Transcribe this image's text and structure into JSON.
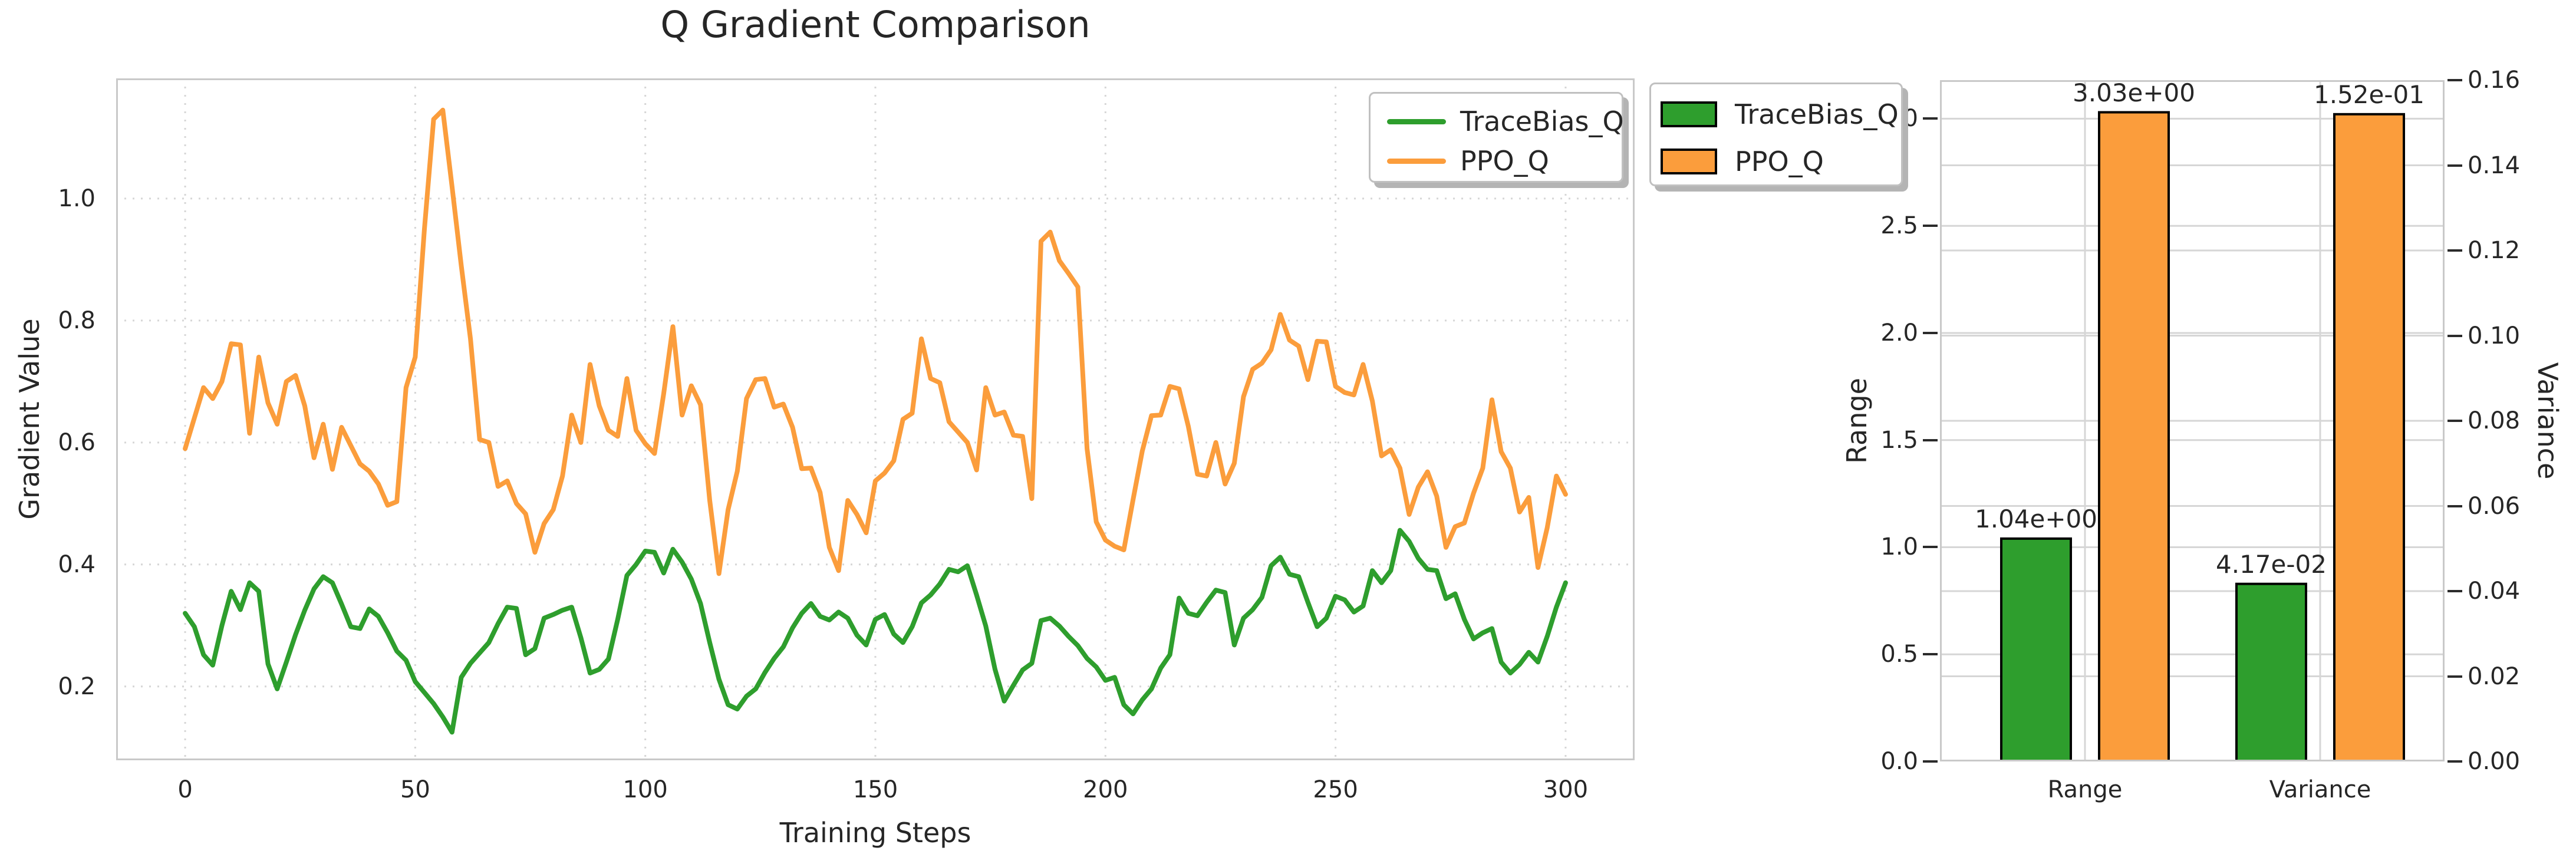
{
  "title": "Q Gradient Comparison",
  "colors": {
    "green": "#2e9e2d",
    "orange": "#fb9d3c",
    "grid": "#d6d6d6",
    "spine": "#c9c9c9",
    "text": "#262626",
    "bar_edge": "#000000"
  },
  "legend": {
    "items": [
      {
        "label": "TraceBias_Q",
        "color": "#2e9e2d"
      },
      {
        "label": "PPO_Q",
        "color": "#fb9d3c"
      }
    ]
  },
  "chart_data": [
    {
      "type": "line",
      "title": "Q Gradient Comparison",
      "xlabel": "Training Steps",
      "ylabel": "Gradient Value",
      "xlim": [
        -15,
        315
      ],
      "ylim": [
        0.079,
        1.197
      ],
      "xticks": [
        0,
        50,
        100,
        150,
        200,
        250,
        300
      ],
      "xtick_labels": [
        "0",
        "50",
        "100",
        "150",
        "200",
        "250",
        "300"
      ],
      "yticks": [
        0.2,
        0.4,
        0.6,
        0.8,
        1.0
      ],
      "ytick_labels": [
        "0.2",
        "0.4",
        "0.6",
        "0.8",
        "1.0"
      ],
      "grid": "dashed",
      "legend_position": "upper right",
      "x_start": 0,
      "x_step": 2,
      "series": [
        {
          "name": "TraceBias_Q",
          "color": "#2e9e2d",
          "values": [
            0.32,
            0.298,
            0.252,
            0.235,
            0.3,
            0.356,
            0.326,
            0.37,
            0.356,
            0.237,
            0.196,
            0.24,
            0.285,
            0.325,
            0.36,
            0.38,
            0.37,
            0.335,
            0.298,
            0.295,
            0.327,
            0.315,
            0.288,
            0.258,
            0.243,
            0.208,
            0.19,
            0.172,
            0.15,
            0.125,
            0.215,
            0.238,
            0.255,
            0.272,
            0.303,
            0.33,
            0.328,
            0.252,
            0.262,
            0.312,
            0.318,
            0.325,
            0.33,
            0.28,
            0.222,
            0.228,
            0.245,
            0.31,
            0.382,
            0.4,
            0.422,
            0.42,
            0.386,
            0.425,
            0.404,
            0.376,
            0.336,
            0.272,
            0.212,
            0.17,
            0.163,
            0.184,
            0.196,
            0.223,
            0.246,
            0.265,
            0.296,
            0.32,
            0.336,
            0.315,
            0.309,
            0.322,
            0.312,
            0.284,
            0.268,
            0.31,
            0.318,
            0.286,
            0.272,
            0.298,
            0.337,
            0.35,
            0.368,
            0.392,
            0.388,
            0.398,
            0.35,
            0.299,
            0.228,
            0.176,
            0.202,
            0.227,
            0.238,
            0.308,
            0.312,
            0.299,
            0.282,
            0.267,
            0.246,
            0.232,
            0.21,
            0.215,
            0.17,
            0.155,
            0.178,
            0.196,
            0.23,
            0.252,
            0.345,
            0.32,
            0.316,
            0.338,
            0.358,
            0.354,
            0.268,
            0.312,
            0.326,
            0.346,
            0.398,
            0.412,
            0.384,
            0.38,
            0.338,
            0.298,
            0.312,
            0.348,
            0.342,
            0.322,
            0.332,
            0.39,
            0.37,
            0.39,
            0.456,
            0.438,
            0.41,
            0.392,
            0.39,
            0.344,
            0.352,
            0.31,
            0.278,
            0.288,
            0.295,
            0.24,
            0.222,
            0.236,
            0.256,
            0.24,
            0.282,
            0.33,
            0.37
          ]
        },
        {
          "name": "PPO_Q",
          "color": "#fb9d3c",
          "values": [
            0.59,
            0.64,
            0.69,
            0.672,
            0.7,
            0.762,
            0.76,
            0.615,
            0.74,
            0.665,
            0.63,
            0.7,
            0.71,
            0.66,
            0.575,
            0.63,
            0.556,
            0.625,
            0.595,
            0.565,
            0.553,
            0.532,
            0.497,
            0.503,
            0.69,
            0.74,
            0.95,
            1.13,
            1.145,
            1.02,
            0.89,
            0.77,
            0.605,
            0.6,
            0.528,
            0.537,
            0.5,
            0.483,
            0.42,
            0.467,
            0.49,
            0.545,
            0.645,
            0.6,
            0.728,
            0.66,
            0.62,
            0.61,
            0.705,
            0.62,
            0.598,
            0.582,
            0.68,
            0.79,
            0.645,
            0.693,
            0.662,
            0.505,
            0.385,
            0.49,
            0.553,
            0.672,
            0.703,
            0.705,
            0.658,
            0.663,
            0.625,
            0.557,
            0.558,
            0.518,
            0.428,
            0.39,
            0.505,
            0.482,
            0.452,
            0.537,
            0.55,
            0.57,
            0.638,
            0.648,
            0.77,
            0.705,
            0.698,
            0.634,
            0.617,
            0.6,
            0.555,
            0.69,
            0.645,
            0.65,
            0.612,
            0.61,
            0.508,
            0.93,
            0.945,
            0.898,
            0.877,
            0.855,
            0.59,
            0.47,
            0.44,
            0.43,
            0.424,
            0.506,
            0.586,
            0.644,
            0.645,
            0.692,
            0.688,
            0.627,
            0.548,
            0.545,
            0.6,
            0.532,
            0.566,
            0.675,
            0.72,
            0.73,
            0.752,
            0.81,
            0.768,
            0.758,
            0.703,
            0.766,
            0.765,
            0.692,
            0.682,
            0.678,
            0.728,
            0.668,
            0.578,
            0.588,
            0.558,
            0.482,
            0.527,
            0.552,
            0.512,
            0.428,
            0.462,
            0.468,
            0.517,
            0.558,
            0.67,
            0.585,
            0.558,
            0.486,
            0.51,
            0.395,
            0.46,
            0.545,
            0.515
          ]
        }
      ]
    },
    {
      "type": "bar",
      "categories": [
        "Range",
        "Variance"
      ],
      "ylabel_left": "Range",
      "ylabel_right": "Variance",
      "ylim_left": [
        0,
        3.18
      ],
      "ylim_right": [
        0,
        0.16
      ],
      "yticks_left": [
        0.0,
        0.5,
        1.0,
        1.5,
        2.0,
        2.5,
        3.0
      ],
      "ytick_labels_left": [
        "0.0",
        "0.5",
        "1.0",
        "1.5",
        "2.0",
        "2.5",
        "3.0"
      ],
      "yticks_right": [
        0.0,
        0.02,
        0.04,
        0.06,
        0.08,
        0.1,
        0.12,
        0.14,
        0.16
      ],
      "ytick_labels_right": [
        "0.00",
        "0.02",
        "0.04",
        "0.06",
        "0.08",
        "0.10",
        "0.12",
        "0.14",
        "0.16"
      ],
      "grid": "solid",
      "category_axis": {
        "Range": "left",
        "Variance": "right"
      },
      "series": [
        {
          "name": "TraceBias_Q",
          "color": "#2e9e2d",
          "values": {
            "Range": 1.04,
            "Variance": 0.0417
          },
          "value_labels": {
            "Range": "1.04e+00",
            "Variance": "4.17e-02"
          }
        },
        {
          "name": "PPO_Q",
          "color": "#fb9d3c",
          "values": {
            "Range": 3.03,
            "Variance": 0.152
          },
          "value_labels": {
            "Range": "3.03e+00",
            "Variance": "1.52e-01"
          }
        }
      ]
    }
  ]
}
